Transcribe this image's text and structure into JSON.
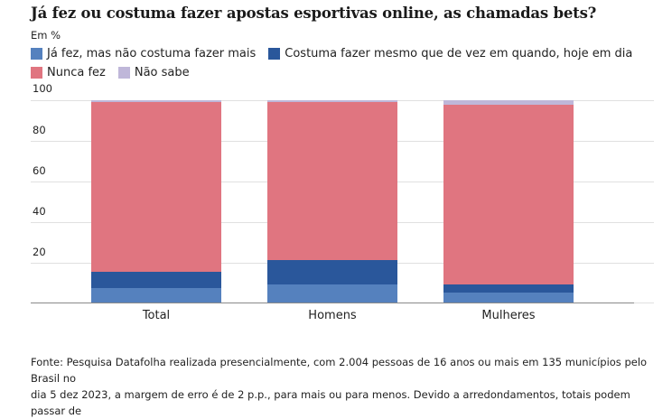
{
  "header": {
    "title": "Já fez ou costuma fazer apostas esportivas online, as chamadas bets?",
    "subtitle": "Em %"
  },
  "legend": [
    {
      "label": "Já fez, mas não costuma fazer mais",
      "color": "#5581be"
    },
    {
      "label": "Costuma fazer mesmo que de vez em quando, hoje em dia",
      "color": "#2a579b"
    },
    {
      "label": "Nunca fez",
      "color": "#e07580"
    },
    {
      "label": "Não sabe",
      "color": "#bfb7d9"
    }
  ],
  "axis": {
    "y_ticks": [
      "100",
      "80",
      "60",
      "40",
      "20"
    ]
  },
  "footer": {
    "line1": "Fonte: Pesquisa Datafolha realizada presencialmente, com 2.004 pessoas de 16 anos ou mais em 135 municípios pelo Brasil no",
    "line2": "dia 5 dez 2023, a margem de erro é de 2 p.p., para mais ou para menos. Devido a arredondamentos, totais podem passar de"
  },
  "chart_data": {
    "type": "bar",
    "stacked": true,
    "title": "Já fez ou costuma fazer apostas esportivas online, as chamadas bets?",
    "subtitle": "Em %",
    "xlabel": "",
    "ylabel": "Em %",
    "ylim": [
      0,
      100
    ],
    "y_ticks": [
      0,
      20,
      40,
      60,
      80,
      100
    ],
    "grid": true,
    "legend_position": "top",
    "categories": [
      "Total",
      "Homens",
      "Mulheres"
    ],
    "series": [
      {
        "name": "Já fez, mas não costuma fazer mais",
        "color": "#5581be",
        "values": [
          7,
          9,
          5
        ]
      },
      {
        "name": "Costuma fazer mesmo que de vez em quando, hoje em dia",
        "color": "#2a579b",
        "values": [
          8,
          12,
          4
        ]
      },
      {
        "name": "Nunca fez",
        "color": "#e07580",
        "values": [
          84,
          78,
          89
        ]
      },
      {
        "name": "Não sabe",
        "color": "#bfb7d9",
        "values": [
          1,
          1,
          2
        ]
      }
    ]
  }
}
